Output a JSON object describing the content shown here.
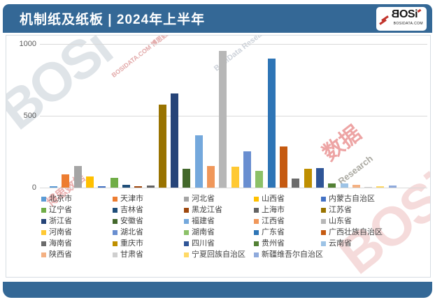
{
  "header": {
    "title": "机制纸及纸板 | 2024年上半年"
  },
  "logo": {
    "b": "B",
    "os": "OS",
    "i": "i",
    "domain": "BOSIDATA.COM"
  },
  "watermarks": [
    {
      "text": "BOSi"
    },
    {
      "text": "BOSIDATA.COM 博思数据"
    },
    {
      "text": "BosiData Research"
    },
    {
      "text": "数据"
    },
    {
      "text": "Research"
    },
    {
      "text": "BOSi"
    },
    {
      "text": "博思数据"
    }
  ],
  "colors": {
    "band_blue": "#346896",
    "grid_line": "#D9D9D9",
    "tick_text": "#595959",
    "legend_text": "#404040",
    "logo_red": "#C2342C"
  },
  "chart_data": {
    "type": "bar",
    "title": "机制纸及纸板 | 2024年上半年",
    "xlabel": "",
    "ylabel": "",
    "ylim": [
      0,
      1000
    ],
    "y_ticks": [
      1000,
      500,
      0
    ],
    "grid": true,
    "legend_position": "bottom",
    "categories": [
      "北京市",
      "天津市",
      "河北省",
      "山西省",
      "内蒙古自治区",
      "辽宁省",
      "吉林省",
      "黑龙江省",
      "上海市",
      "江苏省",
      "浙江省",
      "安徽省",
      "福建省",
      "江西省",
      "山东省",
      "河南省",
      "湖北省",
      "湖南省",
      "广东省",
      "广西壮族自治区",
      "海南省",
      "重庆市",
      "四川省",
      "贵州省",
      "云南省",
      "陕西省",
      "甘肃省",
      "宁夏回族自治区",
      "新疆维吾尔自治区"
    ],
    "values": [
      8,
      92,
      152,
      78,
      10,
      70,
      18,
      12,
      13,
      577,
      655,
      133,
      362,
      150,
      950,
      148,
      253,
      117,
      900,
      286,
      64,
      129,
      137,
      27,
      29,
      19,
      6,
      8,
      16
    ],
    "colors": [
      "#5B9BD5",
      "#ED7D31",
      "#A5A5A5",
      "#FFC000",
      "#4472C4",
      "#70AD47",
      "#1F4E79",
      "#9E480E",
      "#636363",
      "#997300",
      "#264478",
      "#43682B",
      "#74A8DC",
      "#F0975A",
      "#B7B7B7",
      "#FFC933",
      "#698ED0",
      "#8CC168",
      "#2E75B6",
      "#C55A11",
      "#6B6B6B",
      "#BF8F00",
      "#2F5597",
      "#538135",
      "#9DC3E6",
      "#F4B183",
      "#CFCFCF",
      "#FFD966",
      "#8FAADC"
    ]
  }
}
